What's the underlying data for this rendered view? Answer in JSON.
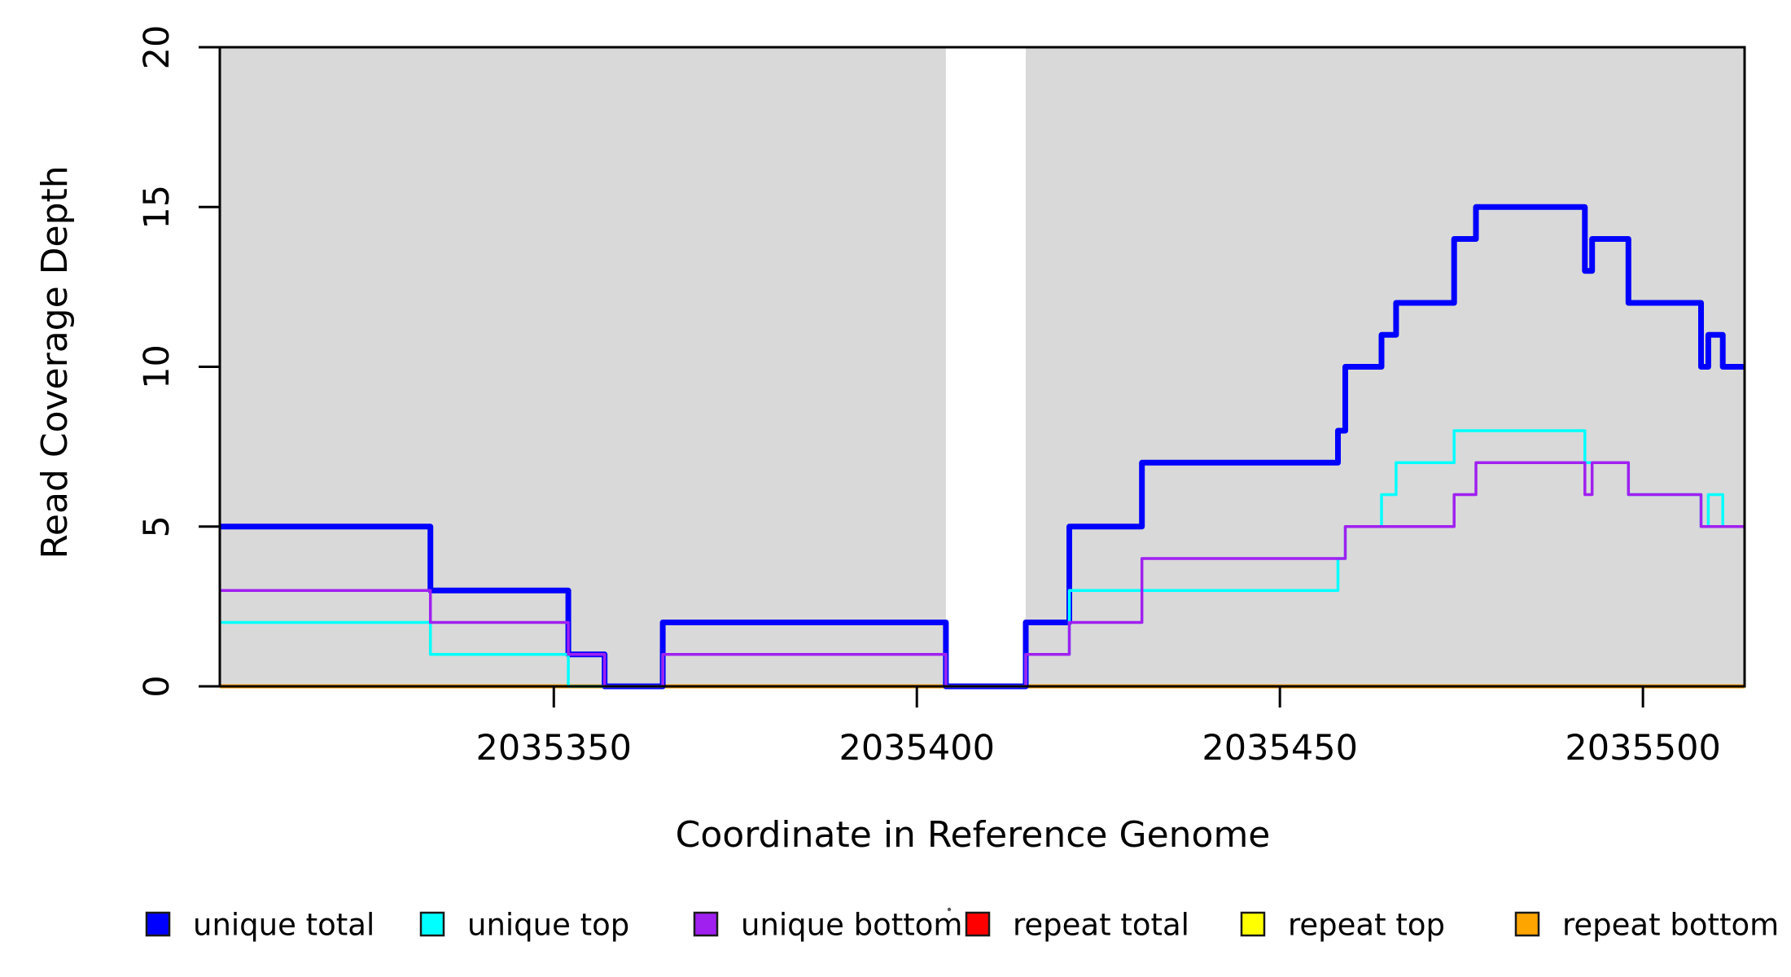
{
  "chart_data": {
    "type": "line",
    "subtype": "step-coverage-plot",
    "title": "",
    "xlabel": "Coordinate in Reference Genome",
    "ylabel": "Read Coverage Depth",
    "xlim": [
      2035304,
      2035514
    ],
    "ylim": [
      0,
      20
    ],
    "x_ticks": [
      2035350,
      2035400,
      2035450,
      2035500
    ],
    "y_ticks": [
      0,
      5,
      10,
      15,
      20
    ],
    "grid": "off",
    "band_color": "#D9D9D9",
    "background_bands": [
      {
        "x0": 2035304,
        "x1": 2035404
      },
      {
        "x0": 2035415,
        "x1": 2035514
      }
    ],
    "series_draw_order": [
      "repeat total",
      "repeat top",
      "repeat bottom",
      "unique total",
      "unique top",
      "unique bottom"
    ],
    "series": [
      {
        "name": "repeat total",
        "color": "#FF0000",
        "width": 3.5,
        "end": 2035514,
        "steps": [
          [
            2035304,
            0
          ]
        ]
      },
      {
        "name": "repeat top",
        "color": "#FFFF00",
        "width": 3.5,
        "end": 2035514,
        "steps": [
          [
            2035304,
            0
          ]
        ]
      },
      {
        "name": "repeat bottom",
        "color": "#FFA500",
        "width": 5,
        "end": 2035514,
        "steps": [
          [
            2035304,
            0
          ]
        ]
      },
      {
        "name": "unique total",
        "color": "#0000FF",
        "width": 7,
        "end": 2035514,
        "steps": [
          [
            2035304,
            5
          ],
          [
            2035333,
            3
          ],
          [
            2035352,
            1
          ],
          [
            2035357,
            0
          ],
          [
            2035365,
            2
          ],
          [
            2035404,
            0
          ],
          [
            2035415,
            2
          ],
          [
            2035421,
            5
          ],
          [
            2035431,
            7
          ],
          [
            2035458,
            8
          ],
          [
            2035459,
            10
          ],
          [
            2035464,
            11
          ],
          [
            2035466,
            12
          ],
          [
            2035474,
            14
          ],
          [
            2035477,
            15
          ],
          [
            2035492,
            13
          ],
          [
            2035493,
            14
          ],
          [
            2035498,
            12
          ],
          [
            2035508,
            10
          ],
          [
            2035509,
            11
          ],
          [
            2035511,
            10
          ]
        ]
      },
      {
        "name": "unique top",
        "color": "#00FFFF",
        "width": 3.5,
        "end": 2035514,
        "steps": [
          [
            2035304,
            2
          ],
          [
            2035333,
            1
          ],
          [
            2035352,
            0
          ],
          [
            2035365,
            1
          ],
          [
            2035404,
            0
          ],
          [
            2035415,
            1
          ],
          [
            2035421,
            3
          ],
          [
            2035458,
            4
          ],
          [
            2035459,
            5
          ],
          [
            2035464,
            6
          ],
          [
            2035466,
            7
          ],
          [
            2035474,
            8
          ],
          [
            2035492,
            7
          ],
          [
            2035498,
            6
          ],
          [
            2035508,
            5
          ],
          [
            2035509,
            6
          ],
          [
            2035511,
            5
          ]
        ]
      },
      {
        "name": "unique bottom",
        "color": "#A020F0",
        "width": 3.5,
        "end": 2035514,
        "steps": [
          [
            2035304,
            3
          ],
          [
            2035333,
            2
          ],
          [
            2035352,
            1
          ],
          [
            2035357,
            0
          ],
          [
            2035365,
            1
          ],
          [
            2035404,
            0
          ],
          [
            2035415,
            1
          ],
          [
            2035421,
            2
          ],
          [
            2035431,
            4
          ],
          [
            2035459,
            5
          ],
          [
            2035474,
            6
          ],
          [
            2035477,
            7
          ],
          [
            2035492,
            6
          ],
          [
            2035493,
            7
          ],
          [
            2035498,
            6
          ],
          [
            2035508,
            5
          ]
        ]
      }
    ],
    "legend_position": "bottom",
    "legend": [
      {
        "label": "unique total",
        "color": "#0000FF"
      },
      {
        "label": "unique top",
        "color": "#00FFFF"
      },
      {
        "label": "unique bottom",
        "color": "#A020F0"
      },
      {
        "label": "repeat total",
        "color": "#FF0000"
      },
      {
        "label": "repeat top",
        "color": "#FFFF00"
      },
      {
        "label": "repeat bottom",
        "color": "#FFA500"
      }
    ],
    "axis_color": "#000000",
    "x_tick_labels": [
      "2035350",
      "2035400",
      "2035450",
      "2035500"
    ],
    "y_tick_labels": [
      "0",
      "5",
      "10",
      "15",
      "20"
    ]
  }
}
